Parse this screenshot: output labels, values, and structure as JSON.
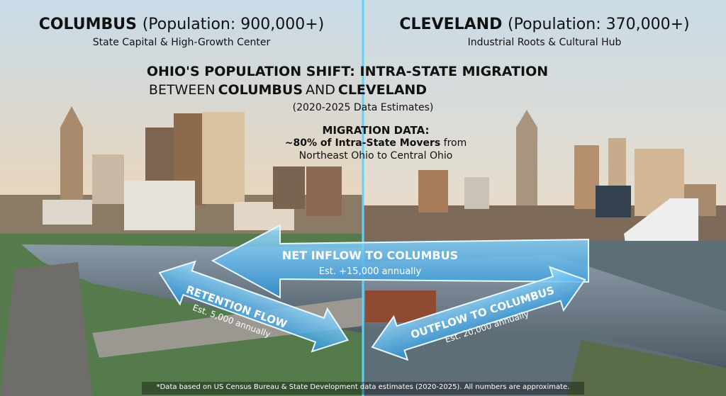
{
  "left": {
    "city": "COLUMBUS",
    "population": "(Population: 900,000+)",
    "subtitle": "State Capital & High-Growth Center"
  },
  "right": {
    "city": "CLEVELAND",
    "population": "(Population: 370,000+)",
    "subtitle": "Industrial Roots & Cultural Hub"
  },
  "title": {
    "line1": "OHIO'S POPULATION SHIFT: INTRA-STATE MIGRATION",
    "line2": [
      "BETWEEN",
      "COLUMBUS",
      "AND",
      "CLEVELAND"
    ],
    "line3": "(2020-2025 Data Estimates)"
  },
  "migration": {
    "heading": "MIGRATION DATA:",
    "highlight": "~80% of Intra-State Movers",
    "rest1": "from",
    "rest2": "Northeast Ohio to Central Ohio"
  },
  "arrows": {
    "inflow": {
      "label": "NET INFLOW TO COLUMBUS",
      "estimate": "Est. +15,000 annually"
    },
    "retention": {
      "label": "RETENTION FLOW",
      "estimate": "Est. 5,000 annually"
    },
    "outflow": {
      "label": "OUTFLOW TO COLUMBUS",
      "estimate": "Est. 20,000 annually"
    }
  },
  "footnote": "*Data based on US Census Bureau & State Development data estimates (2020-2025). All numbers are approximate."
}
